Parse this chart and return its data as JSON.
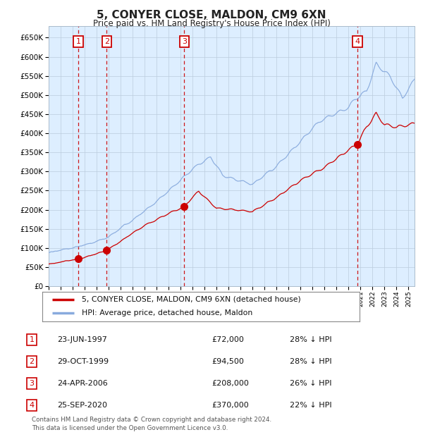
{
  "title": "5, CONYER CLOSE, MALDON, CM9 6XN",
  "subtitle": "Price paid vs. HM Land Registry's House Price Index (HPI)",
  "footer": "Contains HM Land Registry data © Crown copyright and database right 2024.\nThis data is licensed under the Open Government Licence v3.0.",
  "legend_line1": "5, CONYER CLOSE, MALDON, CM9 6XN (detached house)",
  "legend_line2": "HPI: Average price, detached house, Maldon",
  "sale_color": "#cc0000",
  "hpi_color": "#88aadd",
  "plot_bg": "#ddeeff",
  "vline_color": "#cc0000",
  "ylim": [
    0,
    680000
  ],
  "yticks": [
    0,
    50000,
    100000,
    150000,
    200000,
    250000,
    300000,
    350000,
    400000,
    450000,
    500000,
    550000,
    600000,
    650000
  ],
  "xmin": 1995.0,
  "xmax": 2025.5,
  "sales": [
    {
      "date_num": 1997.47,
      "price": 72000,
      "label": "1"
    },
    {
      "date_num": 1999.83,
      "price": 94500,
      "label": "2"
    },
    {
      "date_num": 2006.31,
      "price": 208000,
      "label": "3"
    },
    {
      "date_num": 2020.73,
      "price": 370000,
      "label": "4"
    }
  ],
  "table_rows": [
    {
      "num": "1",
      "date": "23-JUN-1997",
      "price": "£72,000",
      "hpi": "28% ↓ HPI"
    },
    {
      "num": "2",
      "date": "29-OCT-1999",
      "price": "£94,500",
      "hpi": "28% ↓ HPI"
    },
    {
      "num": "3",
      "date": "24-APR-2006",
      "price": "£208,000",
      "hpi": "26% ↓ HPI"
    },
    {
      "num": "4",
      "date": "25-SEP-2020",
      "price": "£370,000",
      "hpi": "22% ↓ HPI"
    }
  ],
  "hpi_key_years": [
    1995.0,
    1997.0,
    1998.5,
    2000.0,
    2002.0,
    2004.5,
    2007.0,
    2008.5,
    2009.5,
    2012.0,
    2014.0,
    2016.0,
    2017.5,
    2020.0,
    2020.5,
    2021.5,
    2022.3,
    2023.5,
    2024.5,
    2025.5
  ],
  "hpi_key_vals": [
    88000,
    100000,
    115000,
    130000,
    175000,
    240000,
    310000,
    340000,
    295000,
    270000,
    315000,
    380000,
    430000,
    470000,
    490000,
    510000,
    580000,
    545000,
    490000,
    540000
  ],
  "prop_key_years": [
    1995.0,
    1997.47,
    1999.83,
    2003.0,
    2006.31,
    2007.5,
    2009.0,
    2012.0,
    2014.0,
    2016.0,
    2018.0,
    2020.0,
    2020.73,
    2021.5,
    2022.3,
    2023.0,
    2024.0,
    2025.5
  ],
  "prop_key_vals": [
    58000,
    72000,
    94500,
    160000,
    208000,
    248000,
    205000,
    195000,
    230000,
    275000,
    310000,
    355000,
    370000,
    415000,
    450000,
    420000,
    415000,
    425000
  ]
}
